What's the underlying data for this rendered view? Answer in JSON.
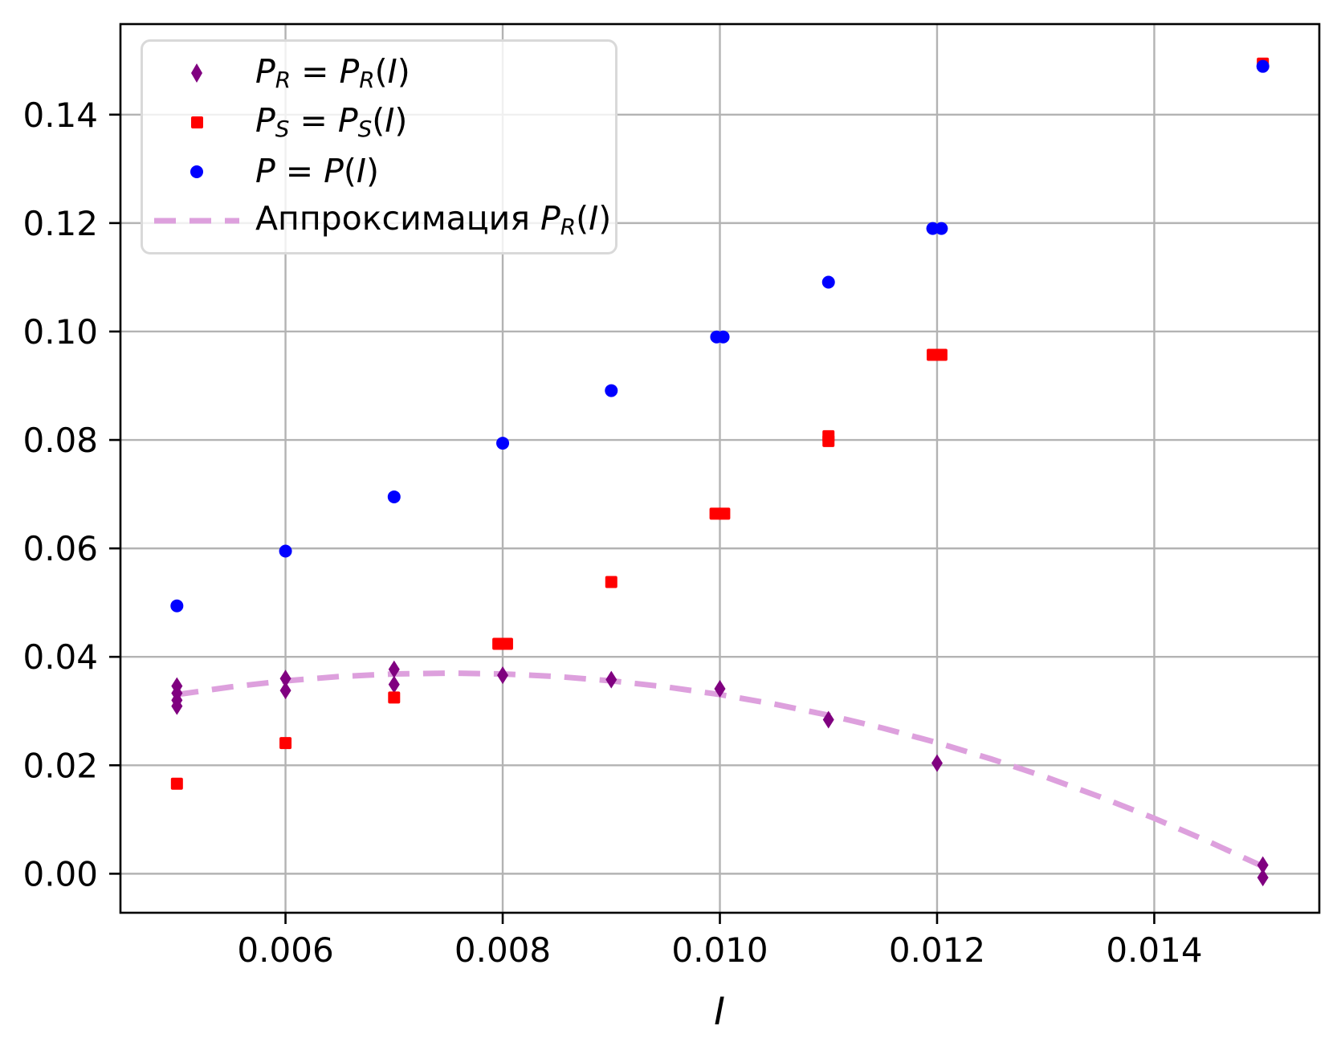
{
  "figure": {
    "background": "#ffffff"
  },
  "chart_data": {
    "type": "scatter",
    "title": "",
    "xlabel": "I",
    "ylabel": "",
    "xlim": [
      0.00448,
      0.01552
    ],
    "ylim": [
      -0.0072,
      0.1567
    ],
    "grid": true,
    "grid_color": "#b3b3b3",
    "spine_color": "#000000",
    "tick_color": "#000000",
    "x_ticks": {
      "values": [
        0.006,
        0.008,
        0.01,
        0.012,
        0.014
      ],
      "labels": [
        "0.006",
        "0.008",
        "0.010",
        "0.012",
        "0.014"
      ]
    },
    "y_ticks": {
      "values": [
        0.0,
        0.02,
        0.04,
        0.06,
        0.08,
        0.1,
        0.12,
        0.14
      ],
      "labels": [
        "0.00",
        "0.02",
        "0.04",
        "0.06",
        "0.08",
        "0.10",
        "0.12",
        "0.14"
      ]
    },
    "series": [
      {
        "id": "P_R",
        "marker": "thin-diamond",
        "color": "#800080",
        "points": [
          [
            0.005,
            0.0346
          ],
          [
            0.005,
            0.0333
          ],
          [
            0.005,
            0.032
          ],
          [
            0.005,
            0.0309
          ],
          [
            0.006,
            0.036
          ],
          [
            0.006,
            0.0338
          ],
          [
            0.007,
            0.0377
          ],
          [
            0.007,
            0.0349
          ],
          [
            0.008,
            0.0366
          ],
          [
            0.009,
            0.0358
          ],
          [
            0.01,
            0.0341
          ],
          [
            0.011,
            0.0284
          ],
          [
            0.012,
            0.0204
          ],
          [
            0.015,
            0.0016
          ],
          [
            0.015,
            -0.0007
          ]
        ]
      },
      {
        "id": "P_S",
        "marker": "square",
        "color": "#ff0000",
        "points": [
          [
            0.005,
            0.0166
          ],
          [
            0.006,
            0.0241
          ],
          [
            0.007,
            0.0325
          ],
          [
            0.00796,
            0.0424
          ],
          [
            0.00804,
            0.0424
          ],
          [
            0.009,
            0.0538
          ],
          [
            0.00996,
            0.0664
          ],
          [
            0.01004,
            0.0664
          ],
          [
            0.011,
            0.0807
          ],
          [
            0.011,
            0.0798
          ],
          [
            0.01196,
            0.0957
          ],
          [
            0.01204,
            0.0957
          ],
          [
            0.015,
            0.1494
          ]
        ]
      },
      {
        "id": "P",
        "marker": "circle",
        "color": "#0000ff",
        "points": [
          [
            0.005,
            0.0494
          ],
          [
            0.006,
            0.0595
          ],
          [
            0.007,
            0.0695
          ],
          [
            0.008,
            0.0794
          ],
          [
            0.009,
            0.0891
          ],
          [
            0.00997,
            0.099
          ],
          [
            0.01003,
            0.099
          ],
          [
            0.011,
            0.1091
          ],
          [
            0.01196,
            0.119
          ],
          [
            0.01204,
            0.119
          ],
          [
            0.015,
            0.1489
          ]
        ]
      }
    ],
    "fit_line": {
      "id": "approx_P_R",
      "color": "#dda0dd",
      "line_style": "dashed",
      "points": [
        [
          0.005,
          0.03304
        ],
        [
          0.0055,
          0.03446
        ],
        [
          0.006,
          0.03557
        ],
        [
          0.0065,
          0.03637
        ],
        [
          0.007,
          0.03684
        ],
        [
          0.0075,
          0.037
        ],
        [
          0.008,
          0.03684
        ],
        [
          0.0085,
          0.03637
        ],
        [
          0.009,
          0.03557
        ],
        [
          0.0095,
          0.03446
        ],
        [
          0.01,
          0.03304
        ],
        [
          0.0105,
          0.03129
        ],
        [
          0.011,
          0.02923
        ],
        [
          0.0115,
          0.02686
        ],
        [
          0.012,
          0.02417
        ],
        [
          0.0125,
          0.02115
        ],
        [
          0.013,
          0.01783
        ],
        [
          0.0135,
          0.01418
        ],
        [
          0.014,
          0.01022
        ],
        [
          0.0145,
          0.00594
        ],
        [
          0.015,
          0.00134
        ]
      ]
    },
    "legend": {
      "items": [
        {
          "series": "P_R",
          "marker": "thin-diamond",
          "color": "#800080",
          "segments": [
            {
              "t": "P",
              "i": true
            },
            {
              "t": "R",
              "i": true,
              "s": true
            },
            {
              "t": " = "
            },
            {
              "t": "P",
              "i": true
            },
            {
              "t": "R",
              "i": true,
              "s": true
            },
            {
              "t": "("
            },
            {
              "t": "I",
              "i": true
            },
            {
              "t": ")"
            }
          ]
        },
        {
          "series": "P_S",
          "marker": "square",
          "color": "#ff0000",
          "segments": [
            {
              "t": "P",
              "i": true
            },
            {
              "t": "S",
              "i": true,
              "s": true
            },
            {
              "t": " = "
            },
            {
              "t": "P",
              "i": true
            },
            {
              "t": "S",
              "i": true,
              "s": true
            },
            {
              "t": "("
            },
            {
              "t": "I",
              "i": true
            },
            {
              "t": ")"
            }
          ]
        },
        {
          "series": "P",
          "marker": "circle",
          "color": "#0000ff",
          "segments": [
            {
              "t": "P",
              "i": true
            },
            {
              "t": " = "
            },
            {
              "t": "P",
              "i": true
            },
            {
              "t": "("
            },
            {
              "t": "I",
              "i": true
            },
            {
              "t": ")"
            }
          ]
        },
        {
          "series": "approx_P_R",
          "marker": "dashed-line",
          "color": "#dda0dd",
          "segments": [
            {
              "t": "Аппроксимация "
            },
            {
              "t": "P",
              "i": true
            },
            {
              "t": "R",
              "i": true,
              "s": true
            },
            {
              "t": "("
            },
            {
              "t": "I",
              "i": true
            },
            {
              "t": ")"
            }
          ]
        }
      ]
    }
  }
}
